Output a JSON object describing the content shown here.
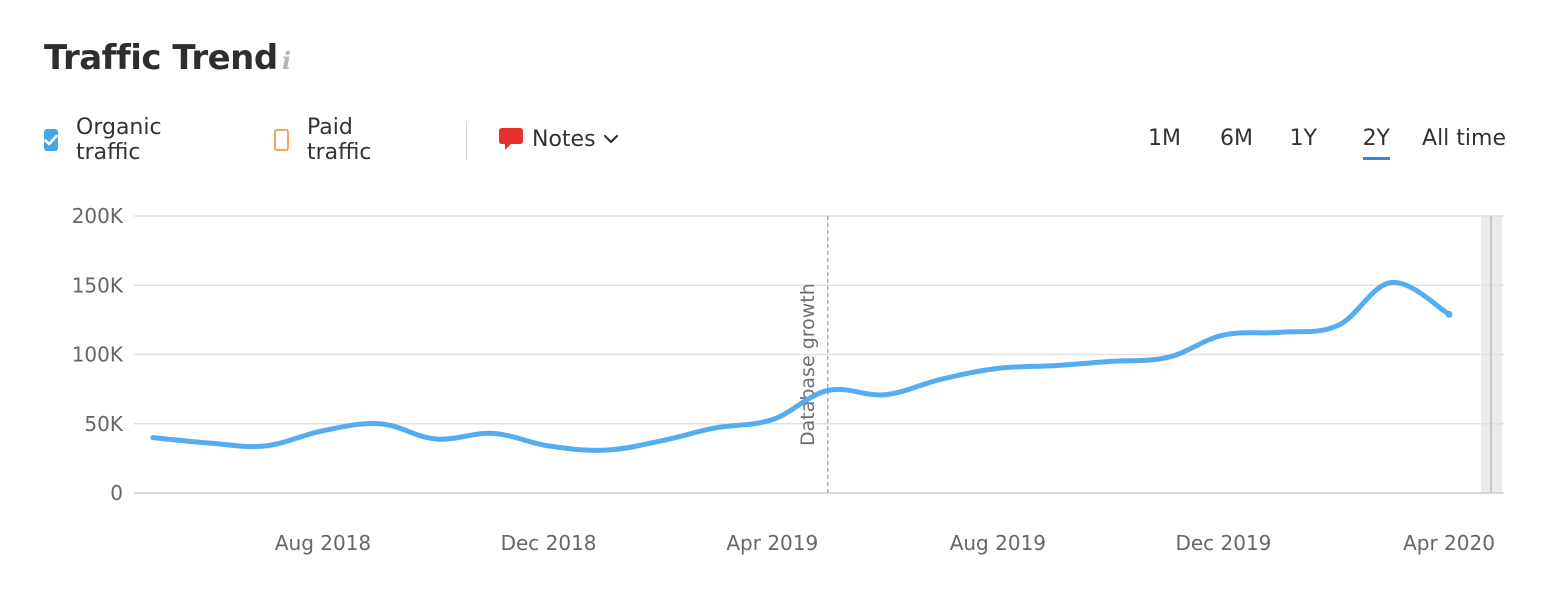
{
  "header": {
    "title": "Traffic Trend",
    "info_icon": "info-icon"
  },
  "legend": {
    "organic": {
      "label": "Organic traffic",
      "checked": true,
      "color": "#45a6ec"
    },
    "paid": {
      "label": "Paid traffic",
      "checked": false,
      "color": "#f1a45a"
    },
    "notes": {
      "label": "Notes",
      "icon": "speech-bubble-icon",
      "color": "#e8312f"
    }
  },
  "periods": [
    {
      "label": "1M",
      "active": false
    },
    {
      "label": "6M",
      "active": false
    },
    {
      "label": "1Y",
      "active": false
    },
    {
      "label": "2Y",
      "active": true
    },
    {
      "label": "All time",
      "active": false
    }
  ],
  "chart_data": {
    "type": "line",
    "title": "",
    "xlabel": "",
    "ylabel": "",
    "ylim": [
      0,
      200000
    ],
    "yticks": [
      0,
      50000,
      100000,
      150000,
      200000
    ],
    "ytick_labels": [
      "0",
      "50K",
      "100K",
      "150K",
      "200K"
    ],
    "xticks": [
      "2018-08-01",
      "2018-12-01",
      "2019-04-01",
      "2019-08-01",
      "2019-12-01",
      "2020-04-01"
    ],
    "xtick_labels": [
      "Aug 2018",
      "Dec 2018",
      "Apr 2019",
      "Aug 2019",
      "Dec 2019",
      "Apr 2020"
    ],
    "grid": true,
    "annotations": [
      {
        "date": "2019-05-01",
        "label": "Database growth"
      }
    ],
    "series": [
      {
        "color": "#55acee",
        "points": [
          {
            "x": "2018-05-01",
            "y": 40000
          },
          {
            "x": "2018-06-01",
            "y": 36000
          },
          {
            "x": "2018-07-01",
            "y": 34000
          },
          {
            "x": "2018-08-01",
            "y": 45000
          },
          {
            "x": "2018-09-01",
            "y": 50000
          },
          {
            "x": "2018-10-01",
            "y": 39000
          },
          {
            "x": "2018-11-01",
            "y": 43000
          },
          {
            "x": "2018-12-01",
            "y": 34000
          },
          {
            "x": "2019-01-01",
            "y": 31000
          },
          {
            "x": "2019-02-01",
            "y": 38000
          },
          {
            "x": "2019-03-01",
            "y": 47000
          },
          {
            "x": "2019-04-01",
            "y": 53000
          },
          {
            "x": "2019-05-01",
            "y": 74000
          },
          {
            "x": "2019-06-01",
            "y": 71000
          },
          {
            "x": "2019-07-01",
            "y": 82000
          },
          {
            "x": "2019-08-01",
            "y": 90000
          },
          {
            "x": "2019-09-01",
            "y": 92000
          },
          {
            "x": "2019-10-01",
            "y": 95000
          },
          {
            "x": "2019-11-01",
            "y": 98000
          },
          {
            "x": "2019-12-01",
            "y": 114000
          },
          {
            "x": "2020-01-01",
            "y": 116000
          },
          {
            "x": "2020-02-01",
            "y": 121000
          },
          {
            "x": "2020-03-01",
            "y": 152000
          },
          {
            "x": "2020-04-01",
            "y": 129000
          }
        ]
      }
    ]
  }
}
